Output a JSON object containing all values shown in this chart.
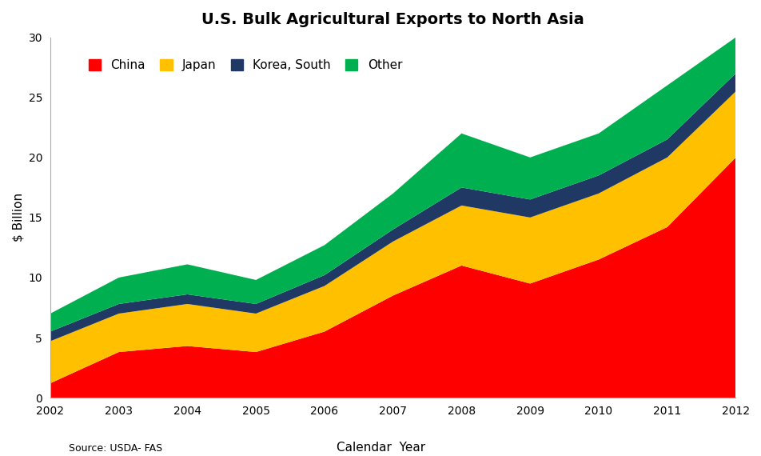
{
  "title": "U.S. Bulk Agricultural Exports to North Asia",
  "years": [
    2002,
    2003,
    2004,
    2005,
    2006,
    2007,
    2008,
    2009,
    2010,
    2011,
    2012
  ],
  "china": [
    1.2,
    3.8,
    4.3,
    3.8,
    5.5,
    8.5,
    11.0,
    9.5,
    11.5,
    14.2,
    20.0
  ],
  "japan": [
    3.5,
    3.2,
    3.5,
    3.2,
    3.8,
    4.5,
    5.0,
    5.5,
    5.5,
    5.8,
    5.5
  ],
  "korea_south": [
    0.8,
    0.8,
    0.8,
    0.8,
    0.9,
    1.0,
    1.5,
    1.5,
    1.5,
    1.5,
    1.5
  ],
  "other": [
    1.5,
    2.2,
    2.5,
    2.0,
    2.5,
    3.0,
    4.5,
    3.5,
    3.5,
    4.5,
    3.0
  ],
  "china_color": "#FF0000",
  "japan_color": "#FFC000",
  "korea_color": "#1F3864",
  "other_color": "#00B050",
  "ylabel": "$ Billion",
  "xlabel": "Calendar  Year",
  "source": "Source: USDA- FAS",
  "ylim": [
    0,
    30
  ],
  "yticks": [
    0,
    5,
    10,
    15,
    20,
    25,
    30
  ],
  "legend_labels": [
    "China",
    "Japan",
    "Korea, South",
    "Other"
  ],
  "bg_color": "#FFFFFF",
  "spine_color": "#AAAAAA",
  "title_fontsize": 14,
  "axis_fontsize": 11,
  "tick_fontsize": 10,
  "legend_fontsize": 11,
  "source_fontsize": 9
}
